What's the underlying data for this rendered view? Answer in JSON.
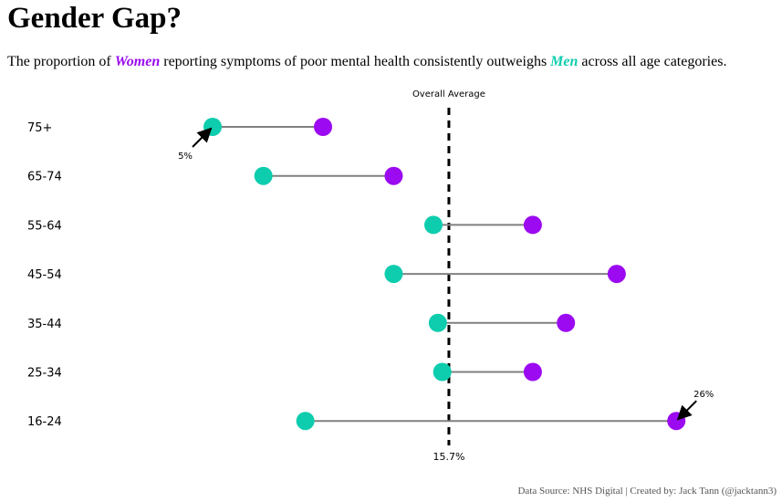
{
  "header": {
    "title": "Gender Gap?",
    "subtitle_prefix": "The proportion of ",
    "subtitle_women": "Women",
    "subtitle_middle": " reporting symptoms of poor mental health consistently outweighs ",
    "subtitle_men": "Men",
    "subtitle_suffix": " across all age categories."
  },
  "footer": {
    "source": "Data Source: NHS Digital | Created by: Jack Tann (@jacktann3)"
  },
  "colors": {
    "women": "#9b0af0",
    "men": "#0dcdae",
    "connector": "#808080",
    "average_line": "#000000"
  },
  "chart_data": {
    "type": "dumbbell",
    "categories": [
      "75+",
      "65-74",
      "55-64",
      "45-54",
      "35-44",
      "25-34",
      "16-24"
    ],
    "series": [
      {
        "name": "Men",
        "values": [
          5.0,
          7.3,
          15.0,
          13.2,
          15.2,
          15.4,
          9.2
        ]
      },
      {
        "name": "Women",
        "values": [
          10.0,
          13.2,
          19.5,
          23.3,
          21.0,
          19.5,
          26.0
        ]
      }
    ],
    "xlim": [
      0,
      30
    ],
    "average": {
      "value": 15.7,
      "label": "Overall Average",
      "value_label": "15.7%"
    },
    "annotations": [
      {
        "category": "75+",
        "series": "Men",
        "text": "5%"
      },
      {
        "category": "16-24",
        "series": "Women",
        "text": "26%"
      }
    ]
  }
}
